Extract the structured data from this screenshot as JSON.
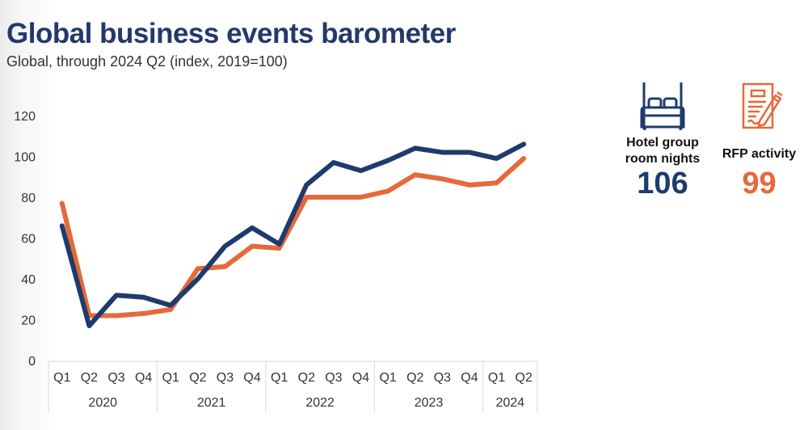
{
  "header": {
    "title": "Global business events barometer",
    "subtitle": "Global, through 2024 Q2 (index, 2019=100)"
  },
  "colors": {
    "hotel": "#1f3b6d",
    "rfp": "#e6693a",
    "title": "#24386a"
  },
  "kpis": [
    {
      "icon": "bed-icon",
      "label_line1": "Hotel group",
      "label_line2": "room nights",
      "value": "106",
      "color": "#1f3b6d"
    },
    {
      "icon": "document-pen-icon",
      "label_line1": "RFP activity",
      "label_line2": "",
      "value": "99",
      "color": "#e6693a"
    }
  ],
  "chart_data": {
    "type": "line",
    "title": "Global business events barometer",
    "subtitle": "Global, through 2024 Q2 (index, 2019=100)",
    "xlabel": "",
    "ylabel": "",
    "ylim": [
      0,
      120
    ],
    "yticks": [
      0,
      20,
      40,
      60,
      80,
      100,
      120
    ],
    "grid": false,
    "legend": "right (icon panel)",
    "categories": [
      "Q1",
      "Q2",
      "Q3",
      "Q4",
      "Q1",
      "Q2",
      "Q3",
      "Q4",
      "Q1",
      "Q2",
      "Q3",
      "Q4",
      "Q1",
      "Q2",
      "Q3",
      "Q4",
      "Q1",
      "Q2"
    ],
    "year_groups": [
      {
        "label": "2020",
        "count": 4
      },
      {
        "label": "2021",
        "count": 4
      },
      {
        "label": "2022",
        "count": 4
      },
      {
        "label": "2023",
        "count": 4
      },
      {
        "label": "2024",
        "count": 2
      }
    ],
    "series": [
      {
        "name": "Hotel group room nights",
        "color": "#1f3b6d",
        "values": [
          66,
          17,
          32,
          31,
          27,
          40,
          56,
          65,
          57,
          86,
          97,
          93,
          98,
          104,
          102,
          102,
          99,
          106
        ]
      },
      {
        "name": "RFP activity",
        "color": "#e6693a",
        "values": [
          77,
          22,
          22,
          23,
          25,
          45,
          46,
          56,
          55,
          80,
          80,
          80,
          83,
          91,
          89,
          86,
          87,
          99
        ]
      }
    ]
  }
}
